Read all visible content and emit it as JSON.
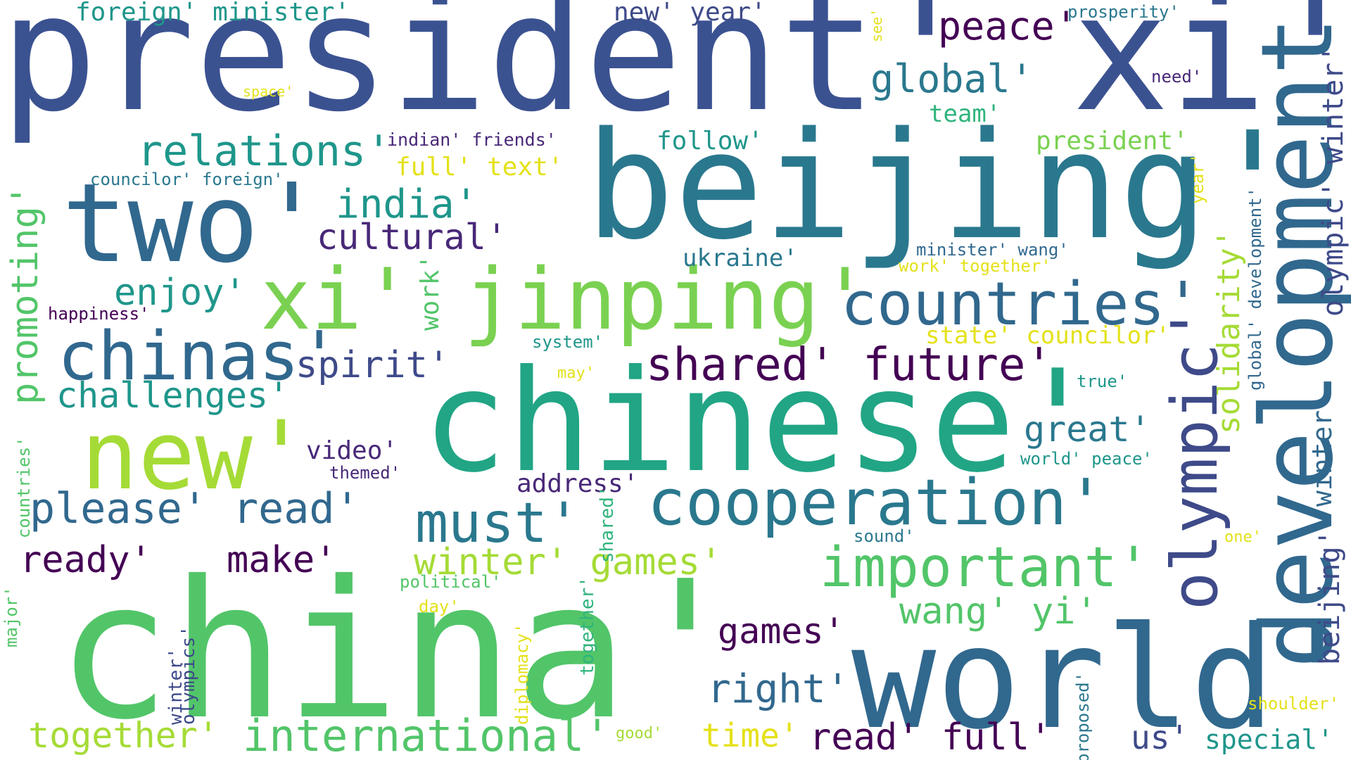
{
  "palette": {
    "c0": "#3b5291",
    "c1": "#2a788e",
    "c2": "#440154",
    "c3": "#21a585",
    "c4": "#2fb47c",
    "c5": "#52c569",
    "c6": "#a5db36",
    "c7": "#e4e11a",
    "c8": "#1f968b",
    "c9": "#31688e",
    "c10": "#482878",
    "c11": "#3e4a89",
    "c12": "#7ad151"
  },
  "words": {
    "w001": "president' xi'",
    "w002": "foreign' minister'",
    "w003": "new' year'",
    "w004": "see'",
    "w005": "peace'",
    "w006": "prosperity'",
    "w007": "global'",
    "w008": "need'",
    "w009": "space'",
    "w010": "team'",
    "w011": "relations'",
    "w012": "indian' friends'",
    "w013": "follow'",
    "w014": "president'",
    "w015": "beijing'",
    "w016": "full' text'",
    "w017": "councilor' foreign'",
    "w018": "two'",
    "w019": "india'",
    "w020": "cultural'",
    "w021": "year'",
    "w022": "development'",
    "w023": "olympic' winter'",
    "w024": "promoting'",
    "w025": "ukraine'",
    "w026": "minister' wang'",
    "w027": "work' together'",
    "w028": "xi' jinping'",
    "w029": "enjoy'",
    "w030": "work'",
    "w031": "countries'",
    "w032": "solidarity'",
    "w033": "global' development'",
    "w034": "happiness'",
    "w035": "chinas'",
    "w036": "system'",
    "w037": "state' councilor'",
    "w038": "spirit'",
    "w039": "shared' future'",
    "w040": "may'",
    "w041": "true'",
    "w042": "challenges'",
    "w043": "chinese'",
    "w044": "olympic'",
    "w045": "new'",
    "w046": "great'",
    "w047": "winter'",
    "w048": "video'",
    "w049": "world' peace'",
    "w050": "themed'",
    "w051": "countries'",
    "w052": "major'",
    "w053": "address'",
    "w054": "cooperation'",
    "w055": "please' read'",
    "w056": "must'",
    "w057": "shared'",
    "w058": "beijing'",
    "w059": "ready'",
    "w060": "make'",
    "w061": "winter' games'",
    "w062": "important'",
    "w063": "sound'",
    "w064": "one'",
    "w065": "olympics'",
    "w066": "political'",
    "w067": "wang' yi'",
    "w068": "day'",
    "w069": "games'",
    "w070": "china'",
    "w071": "world'",
    "w072": "winter'",
    "w073": "together'",
    "w074": "diplomacy'",
    "w075": "right'",
    "w076": "shoulder'",
    "w077": "proposed'",
    "w078": "together'",
    "w079": "international'",
    "w080": "good'",
    "w081": "time'",
    "w082": "read' full'",
    "w083": "us'",
    "w084": "special'"
  }
}
